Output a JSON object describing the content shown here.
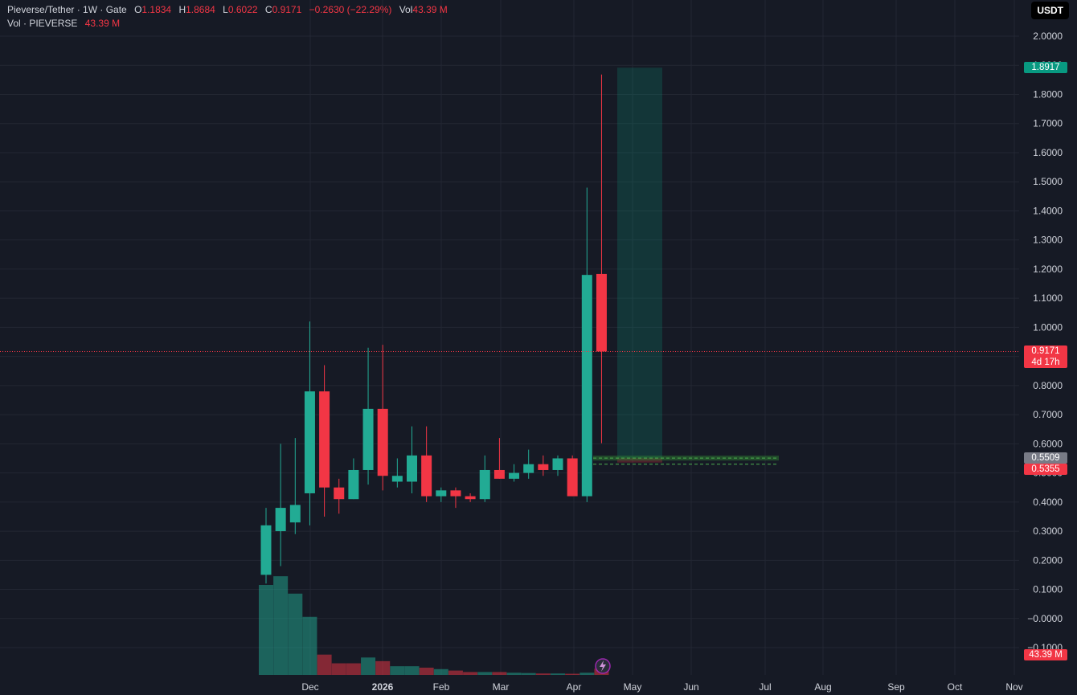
{
  "header": {
    "symbol": "Pieverse/Tether · 1W · Gate",
    "o_label": "O",
    "o_value": "1.1834",
    "h_label": "H",
    "h_value": "1.8684",
    "l_label": "L",
    "l_value": "0.6022",
    "c_label": "C",
    "c_value": "0.9171",
    "change": "−0.2630 (−22.29%)",
    "vol_label": "Vol",
    "vol_value": "43.39 M",
    "vol_row_label": "Vol · PIEVERSE",
    "vol_row_value": "43.39 M"
  },
  "unit": "USDT",
  "price_tags": {
    "target": "1.8917",
    "last": "0.9171",
    "countdown": "4d 17h",
    "entry": "0.5509",
    "stop": "0.5355",
    "volume": "43.39 M"
  },
  "colors": {
    "up": "#22ab94",
    "down": "#f23645",
    "bg": "#161a25",
    "grid": "#232733"
  },
  "chart_data": {
    "type": "candlestick",
    "title": "",
    "y_axis_ticks": [
      "2.0000",
      "1.9000",
      "1.8000",
      "1.7000",
      "1.6000",
      "1.5000",
      "1.4000",
      "1.3000",
      "1.2000",
      "1.1000",
      "1.0000",
      "0.9000",
      "0.8000",
      "0.7000",
      "0.6000",
      "0.5000",
      "0.4000",
      "0.3000",
      "0.2000",
      "0.1000",
      "−0.0000",
      "−0.1000"
    ],
    "y_tick_values": [
      2.0,
      1.9,
      1.8,
      1.7,
      1.6,
      1.5,
      1.4,
      1.3,
      1.2,
      1.1,
      1.0,
      0.9,
      0.8,
      0.7,
      0.6,
      0.5,
      0.4,
      0.3,
      0.2,
      0.1,
      0.0,
      -0.1
    ],
    "x_axis_ticks": [
      "Dec",
      "2026",
      "Feb",
      "Mar",
      "Apr",
      "May",
      "Jun",
      "Jul",
      "Aug",
      "Sep",
      "Oct",
      "Nov"
    ],
    "x_tick_bold": [
      "2026"
    ],
    "candles": [
      {
        "o": 0.15,
        "h": 0.38,
        "l": 0.12,
        "c": 0.32
      },
      {
        "o": 0.3,
        "h": 0.6,
        "l": 0.18,
        "c": 0.38
      },
      {
        "o": 0.33,
        "h": 0.62,
        "l": 0.29,
        "c": 0.39
      },
      {
        "o": 0.43,
        "h": 1.02,
        "l": 0.32,
        "c": 0.78
      },
      {
        "o": 0.78,
        "h": 0.87,
        "l": 0.35,
        "c": 0.45
      },
      {
        "o": 0.45,
        "h": 0.48,
        "l": 0.36,
        "c": 0.41
      },
      {
        "o": 0.41,
        "h": 0.55,
        "l": 0.41,
        "c": 0.51
      },
      {
        "o": 0.51,
        "h": 0.93,
        "l": 0.46,
        "c": 0.72
      },
      {
        "o": 0.72,
        "h": 0.94,
        "l": 0.44,
        "c": 0.49
      },
      {
        "o": 0.47,
        "h": 0.55,
        "l": 0.45,
        "c": 0.49
      },
      {
        "o": 0.47,
        "h": 0.66,
        "l": 0.43,
        "c": 0.56
      },
      {
        "o": 0.56,
        "h": 0.66,
        "l": 0.4,
        "c": 0.42
      },
      {
        "o": 0.42,
        "h": 0.45,
        "l": 0.4,
        "c": 0.44
      },
      {
        "o": 0.44,
        "h": 0.45,
        "l": 0.38,
        "c": 0.42
      },
      {
        "o": 0.42,
        "h": 0.43,
        "l": 0.4,
        "c": 0.41
      },
      {
        "o": 0.41,
        "h": 0.56,
        "l": 0.4,
        "c": 0.51
      },
      {
        "o": 0.51,
        "h": 0.62,
        "l": 0.48,
        "c": 0.48
      },
      {
        "o": 0.48,
        "h": 0.53,
        "l": 0.47,
        "c": 0.5
      },
      {
        "o": 0.5,
        "h": 0.58,
        "l": 0.48,
        "c": 0.53
      },
      {
        "o": 0.53,
        "h": 0.56,
        "l": 0.49,
        "c": 0.51
      },
      {
        "o": 0.51,
        "h": 0.56,
        "l": 0.49,
        "c": 0.55
      },
      {
        "o": 0.55,
        "h": 0.56,
        "l": 0.42,
        "c": 0.42
      },
      {
        "o": 0.42,
        "h": 1.48,
        "l": 0.4,
        "c": 1.18
      },
      {
        "o": 1.1834,
        "h": 1.8684,
        "l": 0.6022,
        "c": 0.9171
      }
    ],
    "volume_millions": [
      620,
      680,
      560,
      400,
      140,
      80,
      80,
      120,
      95,
      60,
      60,
      50,
      40,
      30,
      20,
      20,
      20,
      15,
      13,
      10,
      10,
      8,
      15,
      43.39
    ],
    "volume_direction": [
      "up",
      "up",
      "up",
      "up",
      "down",
      "down",
      "down",
      "up",
      "down",
      "up",
      "up",
      "down",
      "up",
      "down",
      "down",
      "up",
      "down",
      "up",
      "up",
      "down",
      "up",
      "down",
      "up",
      "down"
    ],
    "position": {
      "type": "long",
      "entry": 0.5509,
      "target": 1.8917,
      "stop": 0.5355
    },
    "horizontal_lines": [
      0.5509,
      0.5355
    ]
  }
}
